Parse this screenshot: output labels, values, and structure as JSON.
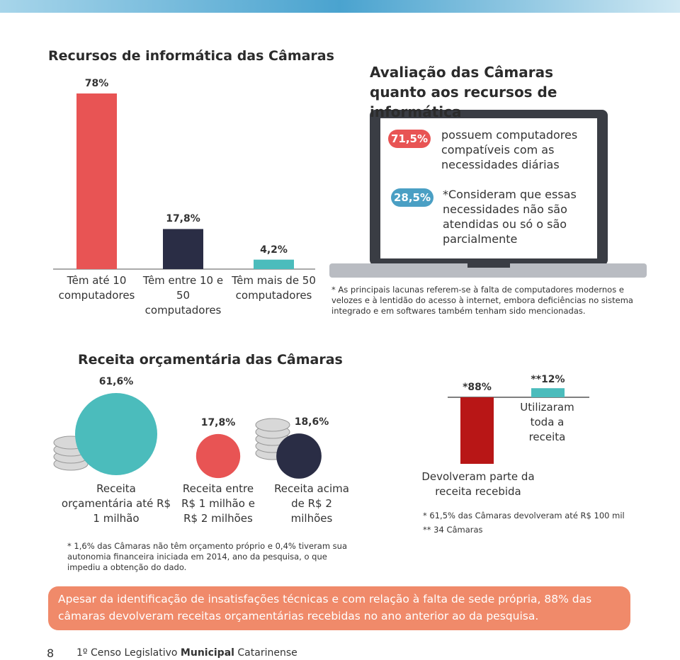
{
  "chart_data": [
    {
      "type": "bar",
      "title": "Recursos de informática das Câmaras",
      "categories": [
        "Têm até 10 computadores",
        "Têm entre 10 e 50 computadores",
        "Têm mais de 50 computadores"
      ],
      "values": [
        78,
        17.8,
        4.2
      ],
      "value_labels": [
        "78%",
        "17,8%",
        "4,2%"
      ],
      "colors": [
        "#e85454",
        "#2a2d45",
        "#4bbcbc"
      ]
    },
    {
      "type": "bubble",
      "title": "Receita orçamentária das Câmaras",
      "categories": [
        "Receita orçamentária até R$ 1 milhão",
        "Receita entre R$ 1 milhão e R$ 2 milhões",
        "Receita acima de R$ 2 milhões"
      ],
      "values": [
        61.6,
        17.8,
        18.6
      ],
      "value_labels": [
        "61,6%",
        "17,8%",
        "18,6%"
      ],
      "colors": [
        "#4bbcbc",
        "#e85454",
        "#2a2d45"
      ],
      "note": "* 1,6% das Câmaras não têm orçamento próprio e 0,4% tiveram sua autonomia financeira iniciada em 2014, ano da pesquisa, o que impediu a obtenção do dado."
    },
    {
      "type": "diverging",
      "categories": [
        "Devolveram parte da receita recebida",
        "Utilizaram toda a receita"
      ],
      "values": [
        88,
        12
      ],
      "value_labels": [
        "*88%",
        "**12%"
      ],
      "colors": [
        "#b81616",
        "#4bbcbc"
      ],
      "notes": [
        "* 61,5% das Câmaras devolveram até R$ 100 mil",
        "** 34 Câmaras"
      ]
    }
  ],
  "evaluation": {
    "title": "Avaliação das Câmaras quanto aos recursos de informática",
    "items": [
      {
        "value_label": "71,5%",
        "text": "possuem computadores compatíveis com as necessidades diárias"
      },
      {
        "value_label": "28,5%",
        "text": "*Consideram que essas necessidades não são atendidas ou só o são parcialmente"
      }
    ],
    "note": "* As principais lacunas referem-se à falta de computadores modernos e velozes e à lentidão do acesso à internet, embora deficiências no sistema integrado e em softwares também tenham sido mencionadas."
  },
  "callout": "Apesar da identificação de insatisfações técnicas e com relação à falta de sede própria, 88% das câmaras devolveram receitas orçamentárias recebidas no ano anterior ao da pesquisa.",
  "footer": {
    "page": "8",
    "prefix": "1º Censo Legislativo",
    "bold": "Municipal",
    "suffix": "Catarinense"
  }
}
